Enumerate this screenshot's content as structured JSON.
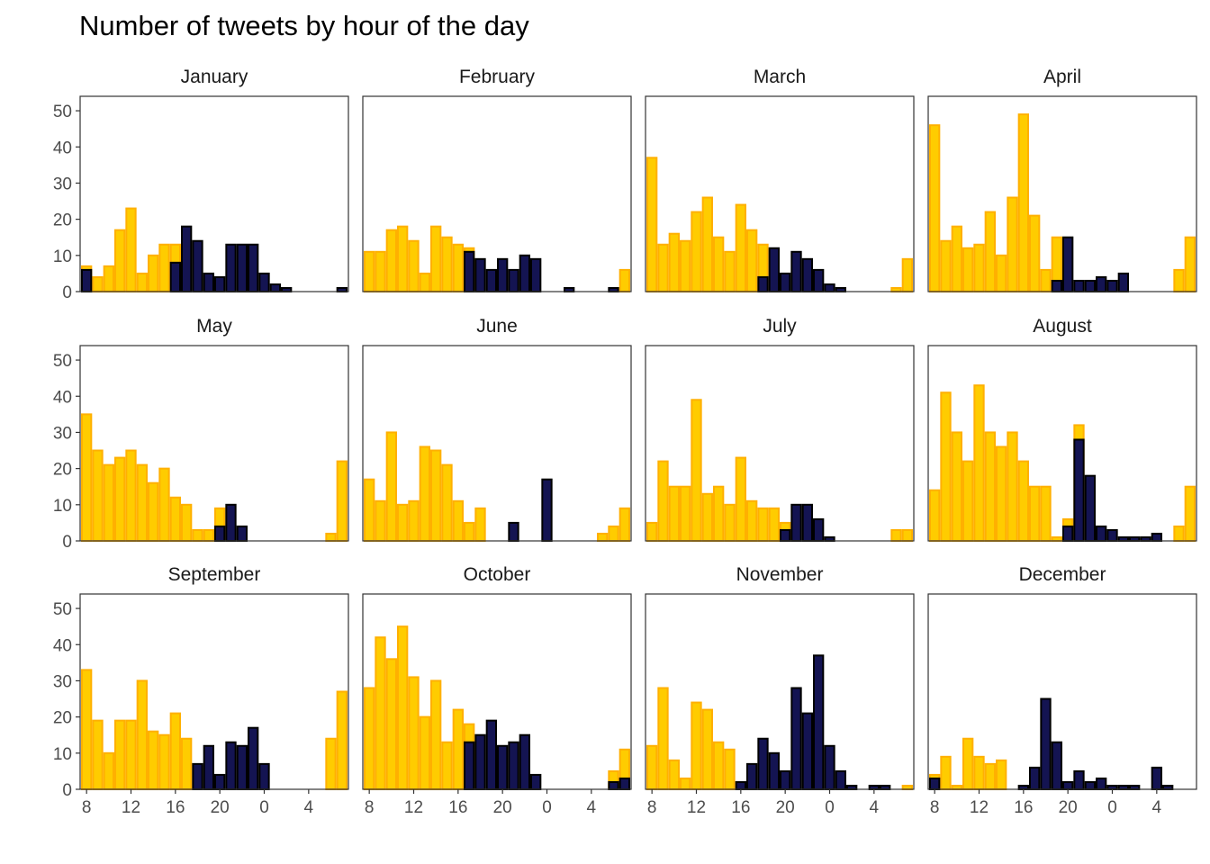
{
  "chart_data": {
    "type": "bar",
    "title": "Number of tweets by hour of the day",
    "xlabel": "",
    "ylabel": "",
    "ylim": [
      0,
      54
    ],
    "y_ticks": [
      0,
      10,
      20,
      30,
      40,
      50
    ],
    "x_ticks": [
      8,
      12,
      16,
      20,
      0,
      4
    ],
    "hours": [
      8,
      9,
      10,
      11,
      12,
      13,
      14,
      15,
      16,
      17,
      18,
      19,
      20,
      21,
      22,
      23,
      0,
      1,
      2,
      3,
      4,
      5,
      6,
      7
    ],
    "layout": "facet-grid 3 rows x 4 columns",
    "colors": {
      "day_fill": "#FFCC00",
      "day_outline": "#FFB000",
      "night_fill": "#141452",
      "night_outline": "#000000"
    },
    "facets": [
      {
        "name": "January",
        "day": [
          7,
          4,
          7,
          17,
          23,
          5,
          10,
          13,
          13,
          0,
          0,
          0,
          0,
          0,
          0,
          0,
          0,
          0,
          0,
          0,
          0,
          0,
          0,
          0
        ],
        "night": [
          6,
          0,
          0,
          0,
          0,
          0,
          0,
          0,
          8,
          18,
          14,
          5,
          4,
          13,
          13,
          13,
          5,
          2,
          1,
          0,
          0,
          0,
          0,
          1
        ]
      },
      {
        "name": "February",
        "day": [
          11,
          11,
          17,
          18,
          14,
          5,
          18,
          15,
          13,
          12,
          0,
          0,
          0,
          0,
          0,
          0,
          0,
          0,
          0,
          0,
          0,
          0,
          0,
          6
        ],
        "night": [
          0,
          0,
          0,
          0,
          0,
          0,
          0,
          0,
          0,
          11,
          9,
          6,
          9,
          6,
          10,
          9,
          0,
          0,
          1,
          0,
          0,
          0,
          1,
          0
        ]
      },
      {
        "name": "March",
        "day": [
          37,
          13,
          16,
          14,
          22,
          26,
          15,
          11,
          24,
          17,
          13,
          0,
          0,
          0,
          0,
          0,
          0,
          0,
          0,
          0,
          0,
          0,
          1,
          9
        ],
        "night": [
          0,
          0,
          0,
          0,
          0,
          0,
          0,
          0,
          0,
          0,
          4,
          12,
          5,
          11,
          9,
          6,
          2,
          1,
          0,
          0,
          0,
          0,
          0,
          0
        ]
      },
      {
        "name": "April",
        "day": [
          46,
          14,
          18,
          12,
          13,
          22,
          10,
          26,
          49,
          21,
          6,
          15,
          0,
          0,
          0,
          0,
          0,
          0,
          0,
          0,
          0,
          0,
          6,
          15
        ],
        "night": [
          0,
          0,
          0,
          0,
          0,
          0,
          0,
          0,
          0,
          0,
          0,
          3,
          15,
          3,
          3,
          4,
          3,
          5,
          0,
          0,
          0,
          0,
          0,
          0
        ]
      },
      {
        "name": "May",
        "day": [
          35,
          25,
          21,
          23,
          25,
          21,
          16,
          20,
          12,
          10,
          3,
          3,
          9,
          0,
          0,
          0,
          0,
          0,
          0,
          0,
          0,
          0,
          2,
          22
        ],
        "night": [
          0,
          0,
          0,
          0,
          0,
          0,
          0,
          0,
          0,
          0,
          0,
          0,
          4,
          10,
          4,
          0,
          0,
          0,
          0,
          0,
          0,
          0,
          0,
          0
        ]
      },
      {
        "name": "June",
        "day": [
          17,
          11,
          30,
          10,
          11,
          26,
          25,
          21,
          11,
          5,
          9,
          0,
          0,
          0,
          0,
          0,
          0,
          0,
          0,
          0,
          0,
          2,
          4,
          9
        ],
        "night": [
          0,
          0,
          0,
          0,
          0,
          0,
          0,
          0,
          0,
          0,
          0,
          0,
          0,
          5,
          0,
          0,
          17,
          0,
          0,
          0,
          0,
          0,
          0,
          0
        ]
      },
      {
        "name": "July",
        "day": [
          5,
          22,
          15,
          15,
          39,
          13,
          15,
          10,
          23,
          11,
          9,
          9,
          5,
          0,
          0,
          0,
          0,
          0,
          0,
          0,
          0,
          0,
          3,
          3
        ],
        "night": [
          0,
          0,
          0,
          0,
          0,
          0,
          0,
          0,
          0,
          0,
          0,
          0,
          3,
          10,
          10,
          6,
          1,
          0,
          0,
          0,
          0,
          0,
          0,
          0
        ]
      },
      {
        "name": "August",
        "day": [
          14,
          41,
          30,
          22,
          43,
          30,
          26,
          30,
          22,
          15,
          15,
          1,
          6,
          32,
          0,
          0,
          0,
          0,
          0,
          0,
          0,
          0,
          4,
          15
        ],
        "night": [
          0,
          0,
          0,
          0,
          0,
          0,
          0,
          0,
          0,
          0,
          0,
          0,
          4,
          28,
          18,
          4,
          3,
          1,
          1,
          1,
          2,
          0,
          0,
          0
        ]
      },
      {
        "name": "September",
        "day": [
          33,
          19,
          10,
          19,
          19,
          30,
          16,
          15,
          21,
          14,
          0,
          0,
          0,
          0,
          0,
          0,
          0,
          0,
          0,
          0,
          0,
          0,
          14,
          27
        ],
        "night": [
          0,
          0,
          0,
          0,
          0,
          0,
          0,
          0,
          0,
          0,
          7,
          12,
          4,
          13,
          12,
          17,
          7,
          0,
          0,
          0,
          0,
          0,
          0,
          0
        ]
      },
      {
        "name": "October",
        "day": [
          28,
          42,
          36,
          45,
          31,
          20,
          30,
          13,
          22,
          18,
          0,
          0,
          0,
          0,
          0,
          0,
          0,
          0,
          0,
          0,
          0,
          0,
          5,
          11
        ],
        "night": [
          0,
          0,
          0,
          0,
          0,
          0,
          0,
          0,
          0,
          13,
          15,
          19,
          12,
          13,
          15,
          4,
          0,
          0,
          0,
          0,
          0,
          0,
          2,
          3
        ]
      },
      {
        "name": "November",
        "day": [
          12,
          28,
          8,
          3,
          24,
          22,
          13,
          11,
          0,
          0,
          0,
          0,
          0,
          0,
          0,
          0,
          0,
          0,
          0,
          0,
          0,
          0,
          0,
          1
        ],
        "night": [
          0,
          0,
          0,
          0,
          0,
          0,
          0,
          0,
          2,
          7,
          14,
          10,
          5,
          28,
          21,
          37,
          12,
          5,
          1,
          0,
          1,
          1,
          0,
          0
        ]
      },
      {
        "name": "December",
        "day": [
          4,
          9,
          1,
          14,
          9,
          7,
          8,
          0,
          0,
          0,
          0,
          0,
          0,
          0,
          0,
          0,
          0,
          0,
          0,
          0,
          0,
          0,
          0,
          0
        ],
        "night": [
          3,
          0,
          0,
          0,
          0,
          0,
          0,
          0,
          1,
          6,
          25,
          13,
          2,
          5,
          2,
          3,
          1,
          1,
          1,
          0,
          6,
          1,
          0,
          0
        ]
      }
    ]
  }
}
